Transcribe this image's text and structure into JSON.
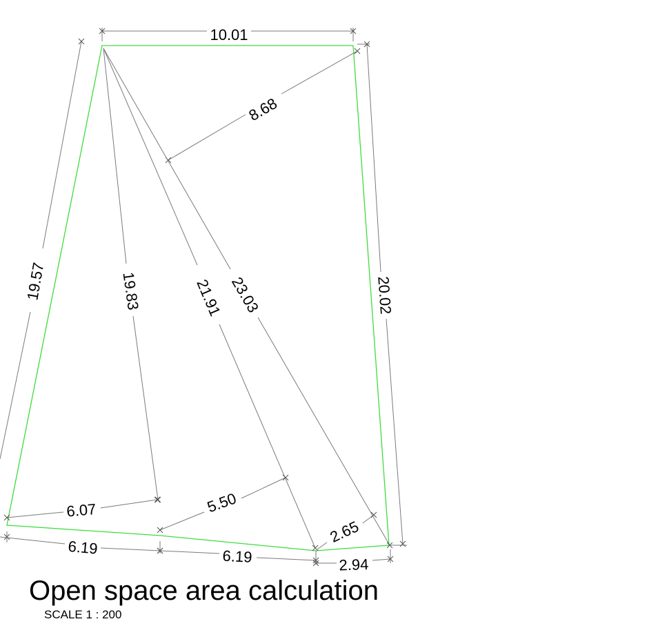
{
  "drawing": {
    "title": "Open space area calculation",
    "scale": "SCALE 1 : 200",
    "boundary_color": "#3ddc3d",
    "dimension_color": "#7a7a7a",
    "dimensions": [
      "10.01",
      "8.68",
      "19.57",
      "19.83",
      "21.91",
      "23.03",
      "20.02",
      "6.07",
      "5.50",
      "2.65",
      "6.19",
      "6.19",
      "2.94"
    ]
  }
}
